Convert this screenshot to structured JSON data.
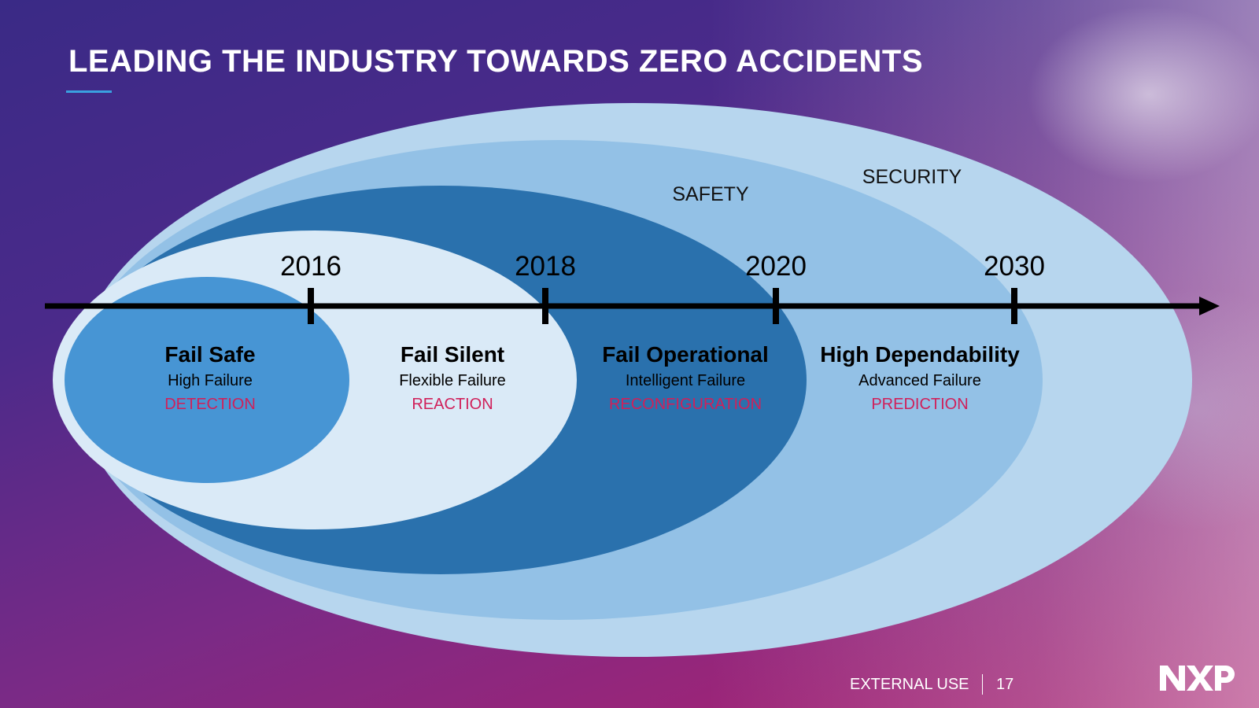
{
  "title": "LEADING THE INDUSTRY TOWARDS ZERO ACCIDENTS",
  "rings": {
    "security_label": "SECURITY",
    "safety_label": "SAFETY"
  },
  "timeline": {
    "years": [
      "2016",
      "2018",
      "2020",
      "2030"
    ]
  },
  "stages": [
    {
      "name": "Fail Safe",
      "failure": "High Failure",
      "mode": "DETECTION"
    },
    {
      "name": "Fail Silent",
      "failure": "Flexible Failure",
      "mode": "REACTION"
    },
    {
      "name": "Fail Operational",
      "failure": "Intelligent Failure",
      "mode": "RECONFIGURATION"
    },
    {
      "name": "High Dependability",
      "failure": "Advanced Failure",
      "mode": "PREDICTION"
    }
  ],
  "footer": {
    "classification": "EXTERNAL USE",
    "page_number": "17",
    "logo_text": "NXP"
  },
  "colors": {
    "ring_outer": "#b7d6ee",
    "ring_second": "#93c1e6",
    "ring_third": "#2a71ad",
    "ring_fourth": "#daeaf7",
    "ring_inner": "#4795d4",
    "mode_text": "#d0205a",
    "arrow": "#000000"
  }
}
